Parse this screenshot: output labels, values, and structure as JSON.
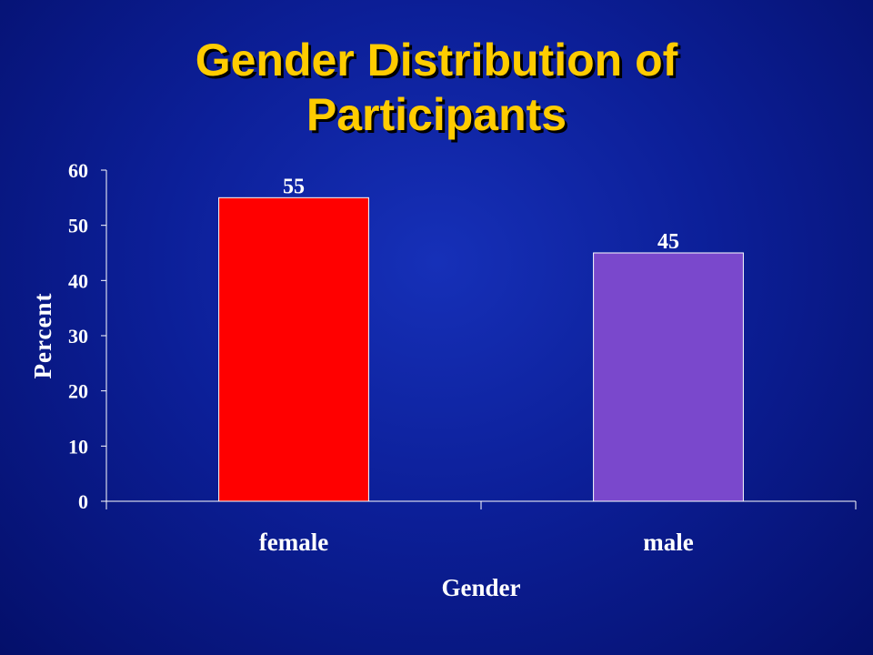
{
  "slide": {
    "title_line1": "Gender Distribution of",
    "title_line2": "Participants"
  },
  "colors": {
    "background": "#0c1f98",
    "title": "#ffcc00",
    "axis": "#ffffff",
    "female_bar": "#ff0000",
    "male_bar": "#7a48cc"
  },
  "chart_data": {
    "type": "bar",
    "title": "Gender Distribution of Participants",
    "xlabel": "Gender",
    "ylabel": "Percent",
    "categories": [
      "female",
      "male"
    ],
    "values": [
      55,
      45
    ],
    "bar_colors": [
      "#ff0000",
      "#7a48cc"
    ],
    "data_labels": [
      "55",
      "45"
    ],
    "ylim": [
      0,
      60
    ],
    "yticks": [
      0,
      10,
      20,
      30,
      40,
      50,
      60
    ],
    "grid": false,
    "legend": "none"
  }
}
